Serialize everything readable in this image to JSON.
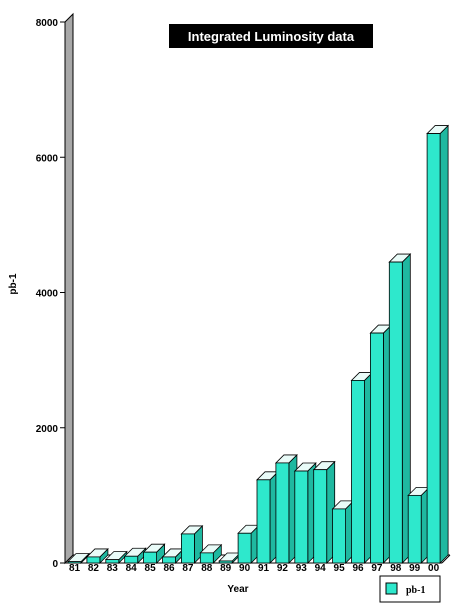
{
  "chart_data": {
    "type": "bar",
    "title": "Integrated Luminosity data",
    "xlabel": "Year",
    "ylabel": "pb-1",
    "ylim": [
      0,
      8000
    ],
    "yticks": [
      "0",
      "2000",
      "4000",
      "6000",
      "8000"
    ],
    "categories": [
      "81",
      "82",
      "83",
      "84",
      "85",
      "86",
      "87",
      "88",
      "89",
      "90",
      "91",
      "92",
      "93",
      "94",
      "95",
      "96",
      "97",
      "98",
      "99",
      "00"
    ],
    "series": [
      {
        "name": "pb-1",
        "color": "#2ee8cc",
        "values": [
          20,
          90,
          50,
          100,
          160,
          90,
          430,
          150,
          30,
          440,
          1230,
          1480,
          1360,
          1380,
          800,
          2700,
          3400,
          4450,
          1000,
          6350
        ]
      }
    ],
    "grid": false,
    "legend_position": "bottom-right",
    "bar_style": "3d"
  }
}
